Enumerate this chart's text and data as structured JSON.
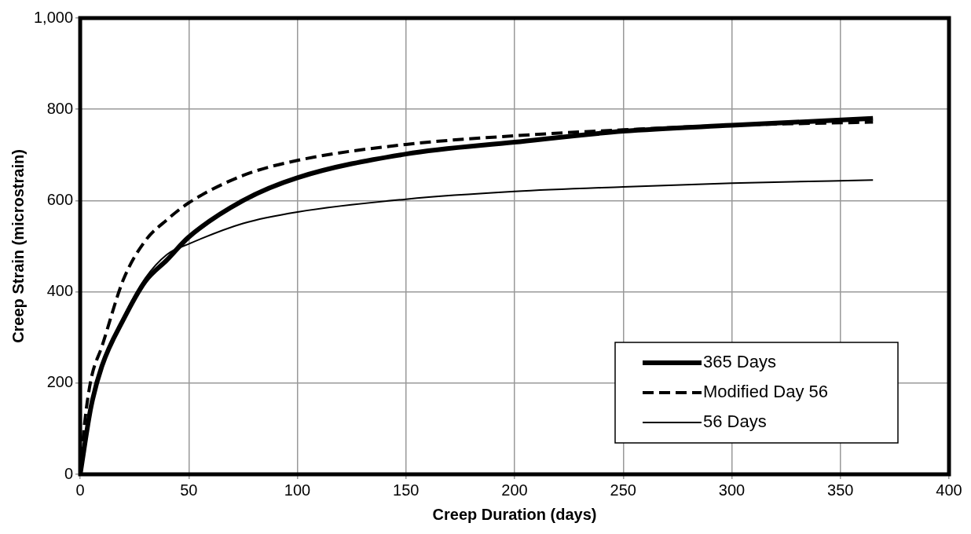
{
  "chart_data": {
    "type": "line",
    "xlabel": "Creep Duration (days)",
    "ylabel": "Creep Strain (microstrain)",
    "xlim": [
      0,
      400
    ],
    "xticks": [
      0,
      50,
      100,
      150,
      200,
      250,
      300,
      350,
      400
    ],
    "ylim": [
      0,
      1000
    ],
    "yticks": [
      0,
      200,
      400,
      600,
      800,
      {
        "value": 1000,
        "label": "1,000"
      }
    ],
    "grid": true,
    "legend": "bottom right",
    "marker": "none",
    "series": [
      {
        "name": "365 Days",
        "color": "#000000",
        "line_style": "solid",
        "x": [
          0,
          5,
          10,
          20,
          30,
          40,
          50,
          75,
          100,
          150,
          200,
          250,
          300,
          365
        ],
        "values": [
          0,
          148,
          237,
          340,
          423,
          470,
          520,
          600,
          650,
          702,
          728,
          752,
          765,
          780
        ]
      },
      {
        "name": "Modified Day 56",
        "color": "#000000",
        "line_style": "dashed",
        "x": [
          0,
          2,
          5,
          10,
          20,
          30,
          40,
          50,
          75,
          100,
          150,
          200,
          250,
          300,
          365
        ],
        "values": [
          0,
          110,
          208,
          280,
          428,
          512,
          558,
          595,
          655,
          688,
          723,
          742,
          755,
          765,
          772
        ]
      },
      {
        "name": "56 Days",
        "color": "#000000",
        "line_style": "solid",
        "x": [
          0,
          5,
          10,
          20,
          30,
          40,
          50,
          75,
          100,
          150,
          200,
          250,
          300,
          365
        ],
        "values": [
          0,
          140,
          232,
          345,
          430,
          482,
          505,
          550,
          575,
          603,
          620,
          630,
          638,
          645
        ]
      }
    ]
  }
}
